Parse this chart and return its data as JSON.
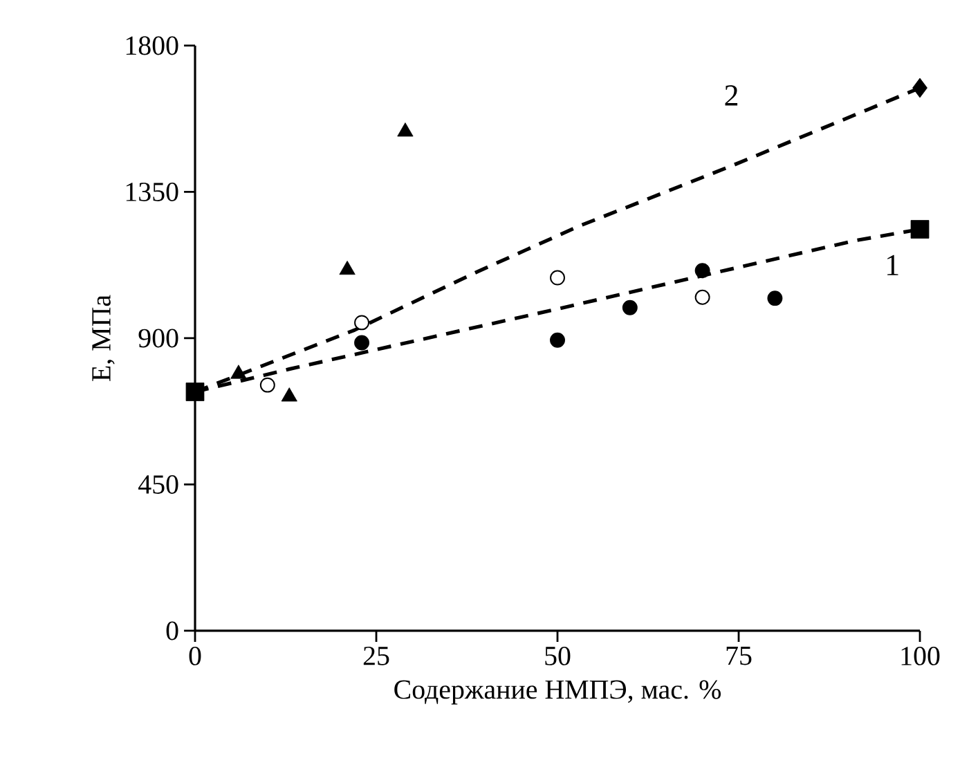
{
  "chart_data": {
    "type": "scatter",
    "xlabel": "Содержание НМПЭ, мас. %",
    "ylabel": "E, МПа",
    "xlim": [
      0,
      100
    ],
    "xticks": [
      0,
      25,
      50,
      75,
      100
    ],
    "ylim": [
      0,
      1800
    ],
    "yticks": [
      0,
      450,
      900,
      1350,
      1800
    ],
    "grid": false,
    "series": [
      {
        "marker": "circle",
        "color": "#000000",
        "x": [
          23,
          50,
          60,
          70,
          80
        ],
        "values": [
          886,
          894,
          994,
          1108,
          1023
        ]
      },
      {
        "marker": "circle",
        "color": "#ffffff",
        "x": [
          10,
          23,
          50,
          70
        ],
        "values": [
          756,
          948,
          1086,
          1026
        ]
      },
      {
        "marker": "triangle",
        "color": "#000000",
        "x": [
          6,
          13,
          21,
          29
        ],
        "values": [
          790,
          720,
          1110,
          1535
        ]
      },
      {
        "marker": "diamond",
        "color": "#000000",
        "x": [
          100
        ],
        "values": [
          1670
        ]
      },
      {
        "marker": "square",
        "color": "#000000",
        "x": [
          0,
          100
        ],
        "values": [
          735,
          1235
        ]
      },
      {
        "type": "line",
        "line_style": "dashed",
        "marker": "none",
        "color": "#000000",
        "x": [
          0,
          13,
          50,
          91,
          100
        ],
        "values": [
          735,
          805,
          990,
          1200,
          1235
        ]
      },
      {
        "type": "line",
        "line_style": "dashed",
        "marker": "none",
        "color": "#000000",
        "x": [
          0,
          22,
          39,
          53,
          74,
          93,
          100
        ],
        "values": [
          735,
          925,
          1105,
          1245,
          1430,
          1605,
          1670
        ]
      }
    ],
    "annotations": [
      "1",
      "2"
    ]
  }
}
